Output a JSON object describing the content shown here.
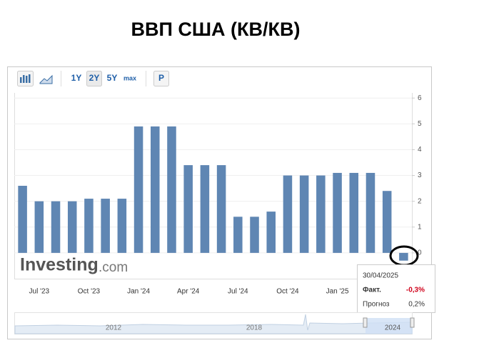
{
  "header": {
    "title": "ВВП США (КВ/КВ)"
  },
  "toolbar": {
    "ranges": [
      "1Y",
      "2Y",
      "5Y",
      "max"
    ],
    "extra": "P"
  },
  "watermark": {
    "brand": "Investing",
    "suffix": ".com"
  },
  "chart_data": {
    "type": "bar",
    "categories": [
      null,
      "Jul '23",
      null,
      null,
      "Oct '23",
      null,
      null,
      "Jan '24",
      null,
      null,
      "Apr '24",
      null,
      null,
      "Jul '24",
      null,
      null,
      "Oct '24",
      null,
      null,
      "Jan '25",
      null,
      null,
      null,
      null
    ],
    "values": [
      2.6,
      2.0,
      2.0,
      2.0,
      2.1,
      2.1,
      2.1,
      4.9,
      4.9,
      4.9,
      3.4,
      3.4,
      3.4,
      1.4,
      1.4,
      1.6,
      3.0,
      3.0,
      3.0,
      3.1,
      3.1,
      3.1,
      2.4,
      -0.3
    ],
    "color": "#5f86b3",
    "ylim": [
      -1,
      6.2
    ],
    "yticks": [
      0,
      1,
      2,
      3,
      4,
      5,
      6
    ],
    "grid": true
  },
  "tooltip": {
    "date": "30/04/2025",
    "actual_label": "Факт.",
    "actual": "-0,3%",
    "forecast_label": "Прогноз",
    "forecast": "0,2%"
  },
  "navigator": {
    "labels": [
      "2012",
      "2018",
      "2024"
    ]
  }
}
